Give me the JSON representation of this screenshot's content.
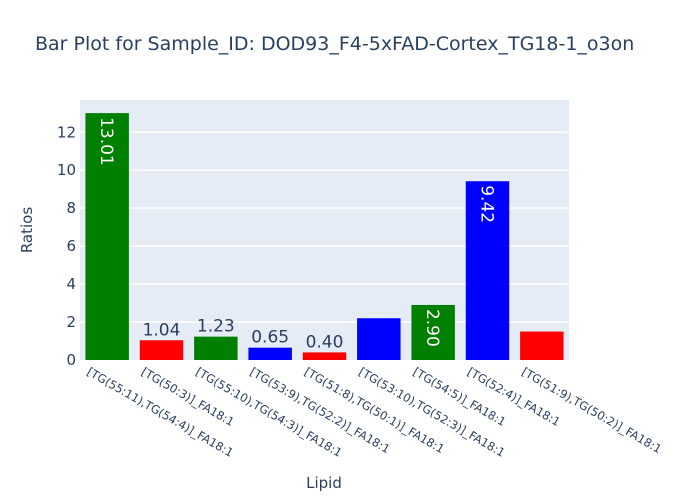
{
  "chart_data": {
    "type": "bar",
    "title": "Bar Plot for Sample_ID: DOD93_F4-5xFAD-Cortex_TG18-1_o3on",
    "xlabel": "Lipid",
    "ylabel": "Ratios",
    "ylim": [
      0,
      13.7
    ],
    "yticks": [
      0,
      2,
      4,
      6,
      8,
      10,
      12
    ],
    "grid": true,
    "legend": "none",
    "plot_background": "#e5ecf6",
    "categories": [
      "[TG(55:11),TG(54:4)]_FA18:1",
      "[TG(50:3)]_FA18:1",
      "[TG(55:10),TG(54:3)]_FA18:1",
      "[TG(53:9),TG(52:2)]_FA18:1",
      "[TG(51:8),TG(50:1)]_FA18:1",
      "[TG(53:10),TG(52:3)]_FA18:1",
      "[TG(54:5)]_FA18:1",
      "[TG(52:4)]_FA18:1",
      "[TG(51:9),TG(50:2)]_FA18:1"
    ],
    "values": [
      13.01,
      1.04,
      1.23,
      0.65,
      0.4,
      2.2,
      2.9,
      9.42,
      1.5
    ],
    "data_labels": [
      "13.01",
      "1.04",
      "1.23",
      "0.65",
      "0.40",
      "",
      "2.90",
      "9.42",
      ""
    ],
    "colors": [
      "#008000",
      "#ff0000",
      "#008000",
      "#0000ff",
      "#ff0000",
      "#0000ff",
      "#008000",
      "#0000ff",
      "#ff0000"
    ]
  }
}
